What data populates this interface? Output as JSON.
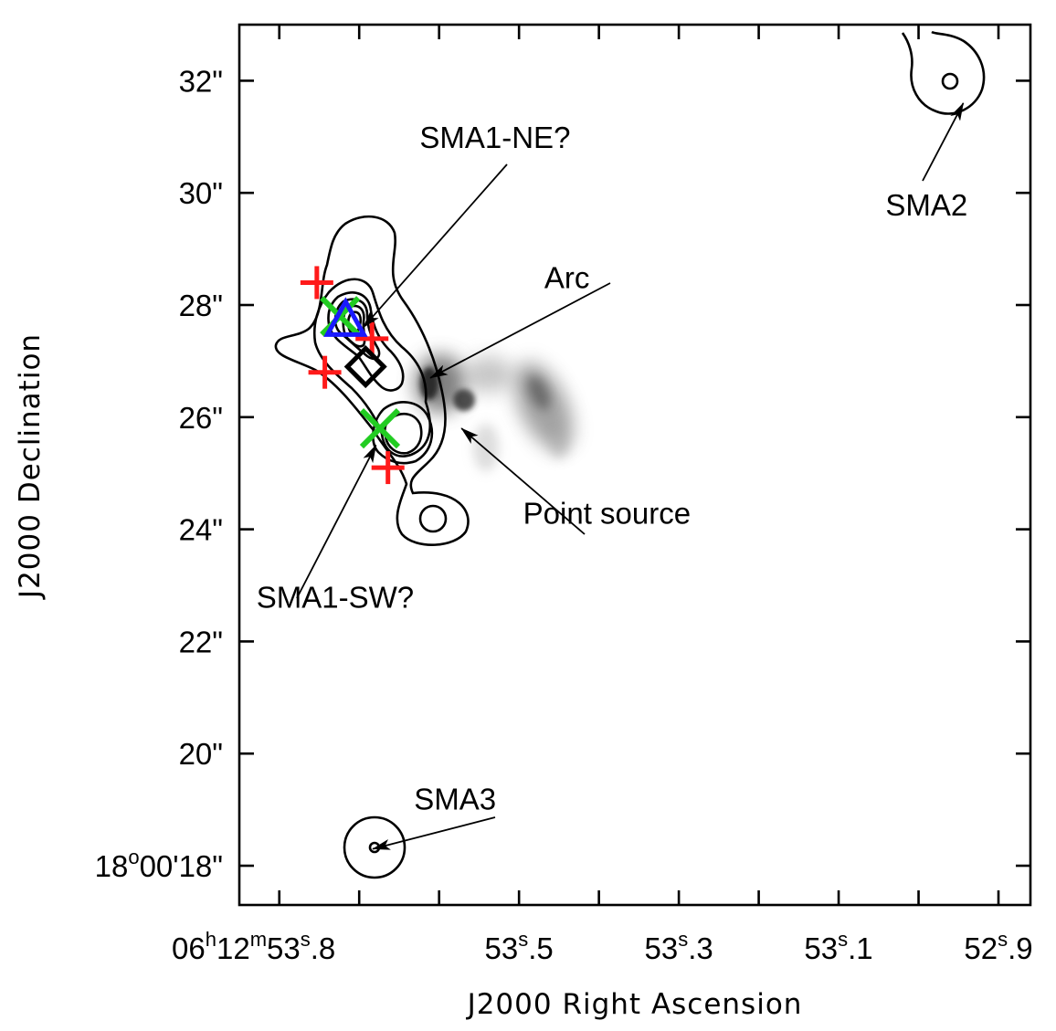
{
  "chart_data": {
    "type": "scatter",
    "xlabel": "J2000 Right Ascension",
    "ylabel": "J2000 Declination",
    "x_axis": {
      "unit": "seconds of RA (06h12m)",
      "direction": "decreasing-right",
      "range": [
        53.85,
        52.86
      ],
      "ticks": [
        {
          "value": 53.8,
          "h": "06",
          "m": "12",
          "s": "53",
          "frac": ".8",
          "full": true
        },
        {
          "value": 53.5,
          "s": "53",
          "frac": ".5"
        },
        {
          "value": 53.3,
          "s": "53",
          "frac": ".3"
        },
        {
          "value": 53.1,
          "s": "53",
          "frac": ".1"
        },
        {
          "value": 52.9,
          "s": "52",
          "frac": ".9"
        }
      ],
      "minor_ticks": [
        53.8,
        53.7,
        53.6,
        53.5,
        53.4,
        53.3,
        53.2,
        53.1,
        53.0,
        52.9
      ]
    },
    "y_axis": {
      "unit": "arcsec (+18°00')",
      "range": [
        17.3,
        33.0
      ],
      "ticks": [
        {
          "value": 32,
          "label": "32\""
        },
        {
          "value": 30,
          "label": "30\""
        },
        {
          "value": 28,
          "label": "28\""
        },
        {
          "value": 26,
          "label": "26\""
        },
        {
          "value": 24,
          "label": "24\""
        },
        {
          "value": 22,
          "label": "22\""
        },
        {
          "value": 20,
          "label": "20\""
        },
        {
          "value": 18,
          "deg": "18",
          "min": "00",
          "sec": "18",
          "full": true
        }
      ]
    },
    "markers": {
      "red_plus": [
        [
          53.753,
          28.4
        ],
        [
          53.743,
          26.8
        ],
        [
          53.664,
          25.1
        ],
        [
          53.684,
          27.4
        ]
      ],
      "green_x": [
        [
          53.724,
          27.8
        ],
        [
          53.674,
          25.8
        ]
      ],
      "blue_triangle": [
        [
          53.717,
          27.7
        ]
      ],
      "black_diamond": [
        [
          53.692,
          26.9
        ]
      ]
    },
    "annotations": [
      {
        "text": "SMA1-NE?",
        "x": 53.53,
        "y": 30.8,
        "arrow_to": [
          53.695,
          27.6
        ]
      },
      {
        "text": "Arc",
        "x": 53.44,
        "y": 28.3,
        "arrow_to": [
          53.611,
          26.7
        ]
      },
      {
        "text": "Point source",
        "x": 53.39,
        "y": 24.1,
        "arrow_to": [
          53.572,
          25.8
        ]
      },
      {
        "text": "SMA1-SW?",
        "x": 53.73,
        "y": 22.6,
        "arrow_to": [
          53.679,
          25.5
        ]
      },
      {
        "text": "SMA2",
        "x": 52.99,
        "y": 29.6,
        "arrow_to": [
          52.944,
          31.6
        ]
      },
      {
        "text": "SMA3",
        "x": 53.58,
        "y": 19.0,
        "arrow_to": [
          53.683,
          18.3
        ]
      }
    ],
    "colors": {
      "plus": "#ff1a1a",
      "x": "#22cc22",
      "triangle": "#1a1aff",
      "diamond": "#000000",
      "contour": "#000000"
    }
  }
}
